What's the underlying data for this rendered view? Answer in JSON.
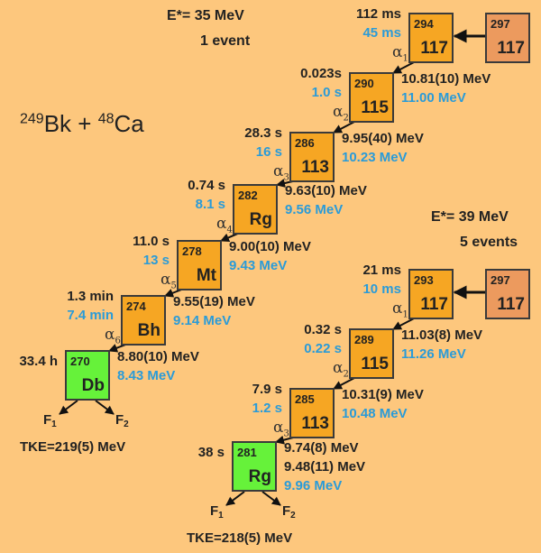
{
  "reaction": {
    "target_mass": "249",
    "target": "Bk",
    "plus": "+",
    "beam_mass": "48",
    "beam": "Ca"
  },
  "colors": {
    "background": "#fdc77d",
    "box_alpha": "#f6a623",
    "box_compound": "#ec9a5e",
    "box_fission": "#66f23a",
    "theory_text": "#2a9bd8"
  },
  "chains": [
    {
      "excitation": "E*= 35 MeV",
      "events": "1 event",
      "compound": {
        "mass": "297",
        "symbol": "117"
      },
      "nuclei": [
        {
          "mass": "294",
          "symbol": "117",
          "t_exp": "112 ms",
          "t_theory": "45 ms",
          "energies_exp": [],
          "energy_theory": ""
        },
        {
          "mass": "290",
          "symbol": "115",
          "t_exp": "0.023s",
          "t_theory": "1.0 s",
          "alpha": "α",
          "alpha_index": "1",
          "energies_exp": [
            "10.81(10) MeV"
          ],
          "energy_theory": "11.00 MeV"
        },
        {
          "mass": "286",
          "symbol": "113",
          "t_exp": "28.3 s",
          "t_theory": "16 s",
          "alpha": "α",
          "alpha_index": "2",
          "energies_exp": [
            "9.95(40) MeV"
          ],
          "energy_theory": "10.23 MeV"
        },
        {
          "mass": "282",
          "symbol": "Rg",
          "t_exp": "0.74 s",
          "t_theory": "8.1 s",
          "alpha": "α",
          "alpha_index": "3",
          "energies_exp": [
            "9.63(10) MeV"
          ],
          "energy_theory": "9.56 MeV"
        },
        {
          "mass": "278",
          "symbol": "Mt",
          "t_exp": "11.0 s",
          "t_theory": "13 s",
          "alpha": "α",
          "alpha_index": "4",
          "energies_exp": [
            "9.00(10) MeV"
          ],
          "energy_theory": "9.43 MeV"
        },
        {
          "mass": "274",
          "symbol": "Bh",
          "t_exp": "1.3 min",
          "t_theory": "7.4 min",
          "alpha": "α",
          "alpha_index": "5",
          "energies_exp": [
            "9.55(19) MeV"
          ],
          "energy_theory": "9.14 MeV"
        },
        {
          "mass": "270",
          "symbol": "Db",
          "t_exp": "33.4 h",
          "t_theory": "",
          "alpha": "α",
          "alpha_index": "6",
          "energies_exp": [
            "8.80(10) MeV"
          ],
          "energy_theory": "8.43 MeV"
        }
      ],
      "fission": {
        "f1": "F",
        "f1_index": "1",
        "f2": "F",
        "f2_index": "2",
        "tke": "TKE=219(5) MeV"
      }
    },
    {
      "excitation": "E*= 39 MeV",
      "events": "5 events",
      "compound": {
        "mass": "297",
        "symbol": "117"
      },
      "nuclei": [
        {
          "mass": "293",
          "symbol": "117",
          "t_exp": "21 ms",
          "t_theory": "10 ms",
          "energies_exp": [],
          "energy_theory": ""
        },
        {
          "mass": "289",
          "symbol": "115",
          "t_exp": "0.32 s",
          "t_theory": "0.22 s",
          "alpha": "α",
          "alpha_index": "1",
          "energies_exp": [
            "11.03(8) MeV"
          ],
          "energy_theory": "11.26 MeV"
        },
        {
          "mass": "285",
          "symbol": "113",
          "t_exp": "7.9 s",
          "t_theory": "1.2 s",
          "alpha": "α",
          "alpha_index": "2",
          "energies_exp": [
            "10.31(9) MeV"
          ],
          "energy_theory": "10.48 MeV"
        },
        {
          "mass": "281",
          "symbol": "Rg",
          "t_exp": "38 s",
          "t_theory": "",
          "alpha": "α",
          "alpha_index": "3",
          "energies_exp": [
            "9.74(8) MeV",
            "9.48(11) MeV"
          ],
          "energy_theory": "9.96 MeV"
        }
      ],
      "fission": {
        "f1": "F",
        "f1_index": "1",
        "f2": "F",
        "f2_index": "2",
        "tke": "TKE=218(5) MeV"
      }
    }
  ]
}
